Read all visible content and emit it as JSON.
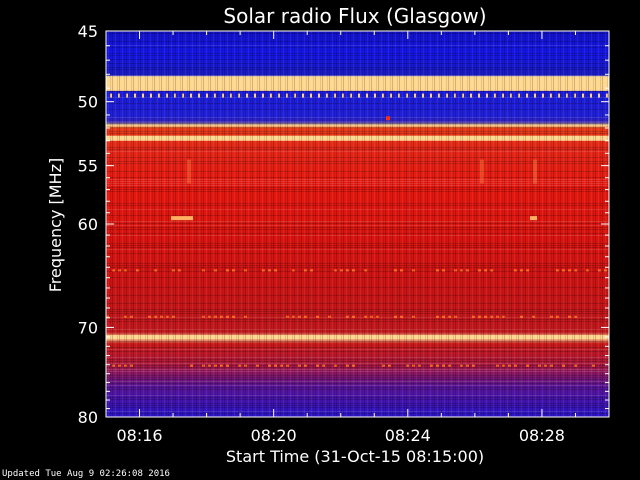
{
  "updated_text": "Updated Tue Aug  9 02:26:08 2016",
  "chart_data": {
    "type": "heatmap",
    "title": "Solar radio Flux (Glasgow)",
    "xlabel": "Start Time (31-Oct-15 08:15:00)",
    "ylabel": "Frequency [MHz]",
    "x_ticks": [
      "08:16",
      "08:20",
      "08:24",
      "08:28"
    ],
    "x_tick_minutes": [
      1,
      5,
      9,
      13
    ],
    "xlim_minutes": [
      0,
      15
    ],
    "y_ticks": [
      45,
      50,
      55,
      60,
      70,
      80
    ],
    "ylim": [
      45,
      80
    ],
    "colors": {
      "background": "#000000",
      "low": "#1010e0",
      "mid": "#5a1496",
      "high": "#e01010",
      "peak": "#ffd890"
    },
    "bands": [
      {
        "from": 45,
        "to": 48.2,
        "level": "low"
      },
      {
        "from": 48.2,
        "to": 49.2,
        "level": "peak"
      },
      {
        "from": 49.2,
        "to": 52.6,
        "level": "low"
      },
      {
        "from": 52.6,
        "to": 53.0,
        "level": "peak"
      },
      {
        "from": 53.0,
        "to": 70.8,
        "level": "high"
      },
      {
        "from": 70.8,
        "to": 71.2,
        "level": "peak"
      },
      {
        "from": 71.2,
        "to": 76.0,
        "level": "high"
      },
      {
        "from": 76.0,
        "to": 80,
        "level": "low"
      }
    ]
  }
}
